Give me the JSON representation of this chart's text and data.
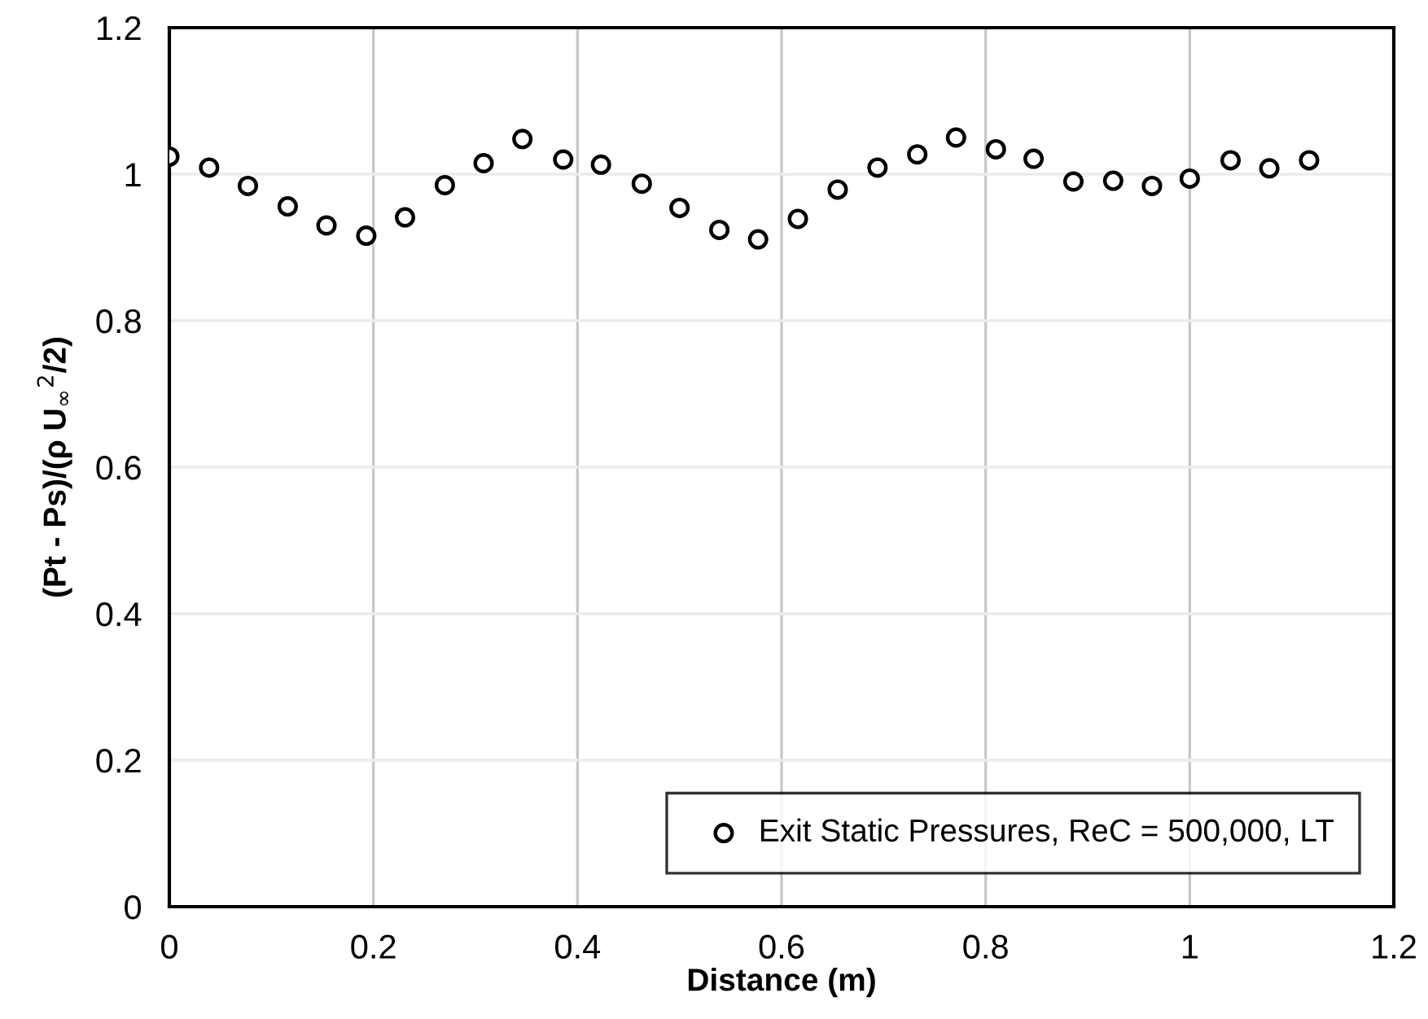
{
  "chart_data": {
    "type": "scatter",
    "xlabel": "Distance (m)",
    "ylabel": "(Pt - Ps)/(ρ U$_{∞}$$^{2}$/2)",
    "xlim": [
      0,
      1.2
    ],
    "xticks": [
      0,
      0.2,
      0.4,
      0.6,
      0.8,
      1,
      1.2
    ],
    "ylim": [
      0,
      1.2
    ],
    "yticks": [
      0,
      0.2,
      0.4,
      0.6,
      0.8,
      1,
      1.2
    ],
    "grid": true,
    "legend": "bottom right",
    "marker": "circle",
    "series": [
      {
        "name": "Exit Static Pressures, ReC = 500,000, LT",
        "color": "#000000",
        "x": [
          0,
          0.039,
          0.077,
          0.116,
          0.154,
          0.193,
          0.231,
          0.27,
          0.308,
          0.346,
          0.386,
          0.423,
          0.463,
          0.5,
          0.539,
          0.577,
          0.616,
          0.655,
          0.694,
          0.733,
          0.771,
          0.81,
          0.847,
          0.886,
          0.925,
          0.963,
          1.0,
          1.04,
          1.078,
          1.117
        ],
        "values": [
          1.024,
          1.009,
          0.984,
          0.956,
          0.93,
          0.916,
          0.941,
          0.985,
          1.015,
          1.048,
          1.02,
          1.013,
          0.987,
          0.954,
          0.924,
          0.911,
          0.939,
          0.979,
          1.009,
          1.027,
          1.05,
          1.034,
          1.021,
          0.99,
          0.991,
          0.984,
          0.994,
          1.019,
          1.008,
          1.019
        ]
      }
    ]
  }
}
